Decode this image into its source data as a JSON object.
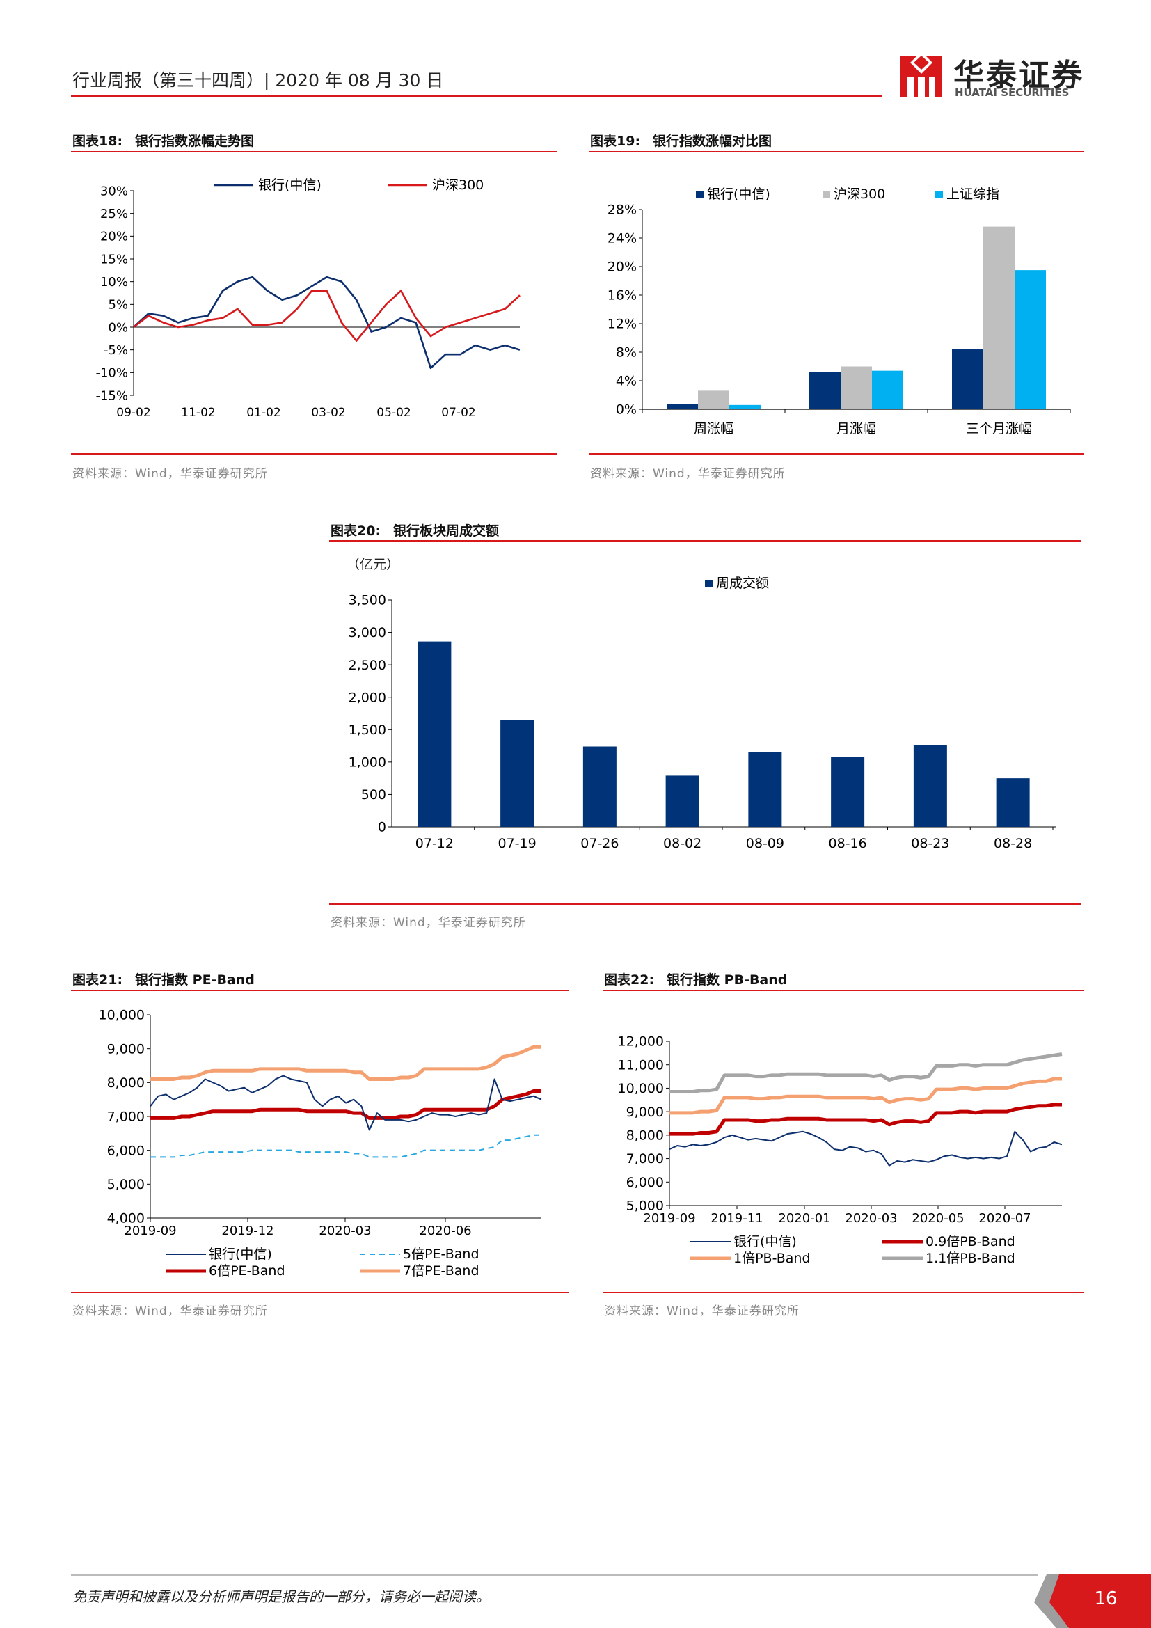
{
  "header": {
    "title": "行业周报（第三十四周）| 2020 年 08 月 30 日",
    "logo_cn": "华泰证券",
    "logo_en": "HUATAI SECURITIES",
    "brand_color": "#d7191c"
  },
  "footer": {
    "disclaimer": "免责声明和披露以及分析师声明是报告的一部分，请务必一起阅读。",
    "page": "16"
  },
  "figures": [
    {
      "num": "图表18:",
      "title": "银行指数涨幅走势图",
      "source": "资料来源：Wind，华泰证券研究所"
    },
    {
      "num": "图表19:",
      "title": "银行指数涨幅对比图",
      "source": "资料来源：Wind，华泰证券研究所"
    },
    {
      "num": "图表20:",
      "title": "银行板块周成交额",
      "source": "资料来源：Wind，华泰证券研究所",
      "unit": "（亿元）"
    },
    {
      "num": "图表21:",
      "title": "银行指数 PE-Band",
      "source": "资料来源：Wind，华泰证券研究所"
    },
    {
      "num": "图表22:",
      "title": "银行指数 PB-Band",
      "source": "资料来源：Wind，华泰证券研究所"
    }
  ],
  "chart_data": [
    {
      "type": "line",
      "ylim": [
        -15,
        30
      ],
      "y_ticks": [
        "30%",
        "25%",
        "20%",
        "15%",
        "10%",
        "5%",
        "0%",
        "-5%",
        "-10%",
        "-15%"
      ],
      "x_ticks": [
        "09-02",
        "11-02",
        "01-02",
        "03-02",
        "05-02",
        "07-02"
      ],
      "legend": "top-center",
      "x": [
        0,
        2,
        4,
        6,
        8,
        10,
        12,
        14,
        16,
        18,
        20,
        22,
        24,
        26,
        28,
        30,
        32,
        34,
        36,
        38,
        40,
        42,
        44,
        46,
        48,
        50,
        52
      ],
      "series": [
        {
          "name": "银行(中信)",
          "color": "#0d2f6e",
          "values": [
            0,
            3,
            2.5,
            1,
            2,
            2.5,
            8,
            10,
            11,
            8,
            6,
            7,
            9,
            11,
            10,
            6,
            -1,
            0,
            2,
            1,
            -9,
            -6,
            -6,
            -4,
            -5,
            -4,
            -5
          ]
        },
        {
          "name": "沪深300",
          "color": "#d7191c",
          "values": [
            0,
            2.5,
            1,
            0,
            0.5,
            1.5,
            2,
            4,
            0.5,
            0.5,
            1,
            4,
            8,
            8,
            1,
            -3,
            1,
            5,
            8,
            2,
            -2,
            0,
            1,
            2,
            3,
            4,
            7
          ]
        }
      ]
    },
    {
      "type": "bar",
      "ylim": [
        0,
        28
      ],
      "y_ticks": [
        "28%",
        "24%",
        "20%",
        "16%",
        "12%",
        "8%",
        "4%",
        "0%"
      ],
      "categories": [
        "周涨幅",
        "月涨幅",
        "三个月涨幅"
      ],
      "legend": "top",
      "series": [
        {
          "name": "银行(中信)",
          "color": "#003377",
          "values": [
            0.7,
            5.2,
            8.4
          ]
        },
        {
          "name": "沪深300",
          "color": "#bfbfbf",
          "values": [
            2.6,
            6.0,
            25.6
          ]
        },
        {
          "name": "上证综指",
          "color": "#00b0f0",
          "values": [
            0.6,
            5.4,
            19.5
          ]
        }
      ]
    },
    {
      "type": "bar",
      "ylim": [
        0,
        3500
      ],
      "y_ticks": [
        "3,500",
        "3,000",
        "2,500",
        "2,000",
        "1,500",
        "1,000",
        "500",
        "0"
      ],
      "categories": [
        "07-12",
        "07-19",
        "07-26",
        "08-02",
        "08-09",
        "08-16",
        "08-23",
        "08-28"
      ],
      "legend": "top-right",
      "series": [
        {
          "name": "周成交额",
          "color": "#003377",
          "values": [
            2860,
            1650,
            1240,
            790,
            1150,
            1080,
            1260,
            750
          ]
        }
      ]
    },
    {
      "type": "line",
      "ylim": [
        4000,
        10000
      ],
      "y_ticks": [
        "10,000",
        "9,000",
        "8,000",
        "7,000",
        "6,000",
        "5,000",
        "4,000"
      ],
      "x_ticks": [
        "2019-09",
        "2019-12",
        "2020-03",
        "2020-06"
      ],
      "legend": "bottom",
      "x": [
        0,
        1,
        2,
        3,
        4,
        5,
        6,
        7,
        8,
        9,
        10,
        11,
        12,
        13,
        14,
        15,
        16,
        17,
        18,
        19,
        20,
        21,
        22,
        23,
        24,
        25,
        26,
        27,
        28,
        29,
        30,
        31,
        32,
        33,
        34,
        35,
        36,
        37,
        38,
        39,
        40,
        41,
        42,
        43,
        44,
        45,
        46,
        47,
        48,
        49,
        50
      ],
      "series": [
        {
          "name": "银行(中信)",
          "color": "#0d2f6e",
          "style": "thin",
          "values": [
            7300,
            7600,
            7650,
            7500,
            7600,
            7700,
            7850,
            8100,
            8000,
            7900,
            7750,
            7800,
            7850,
            7700,
            7800,
            7900,
            8100,
            8200,
            8100,
            8050,
            8000,
            7500,
            7300,
            7500,
            7600,
            7400,
            7500,
            7300,
            6600,
            7100,
            6900,
            6900,
            6900,
            6850,
            6900,
            7000,
            7100,
            7050,
            7050,
            7000,
            7050,
            7100,
            7050,
            7100,
            8100,
            7500,
            7450,
            7500,
            7550,
            7600,
            7500
          ]
        },
        {
          "name": "5倍PE-Band",
          "color": "#28a8e0",
          "style": "dashed",
          "values": [
            5800,
            5800,
            5800,
            5800,
            5850,
            5850,
            5900,
            5950,
            5950,
            5950,
            5950,
            5950,
            5950,
            6000,
            6000,
            6000,
            6000,
            6000,
            6000,
            5950,
            5950,
            5950,
            5950,
            5950,
            5950,
            5950,
            5900,
            5900,
            5800,
            5800,
            5800,
            5800,
            5800,
            5850,
            5900,
            6000,
            6000,
            6000,
            6000,
            6000,
            6000,
            6000,
            6000,
            6050,
            6100,
            6300,
            6300,
            6350,
            6400,
            6450,
            6450
          ]
        },
        {
          "name": "6倍PE-Band",
          "color": "#c00000",
          "style": "thick",
          "values": [
            6950,
            6950,
            6950,
            6950,
            7000,
            7000,
            7050,
            7100,
            7150,
            7150,
            7150,
            7150,
            7150,
            7150,
            7200,
            7200,
            7200,
            7200,
            7200,
            7200,
            7150,
            7150,
            7150,
            7150,
            7150,
            7150,
            7100,
            7100,
            6950,
            6950,
            6950,
            6950,
            7000,
            7000,
            7050,
            7200,
            7200,
            7200,
            7200,
            7200,
            7200,
            7200,
            7200,
            7200,
            7300,
            7500,
            7550,
            7600,
            7650,
            7750,
            7750
          ]
        },
        {
          "name": "7倍PE-Band",
          "color": "#f4a070",
          "style": "thick",
          "values": [
            8100,
            8100,
            8100,
            8100,
            8150,
            8150,
            8200,
            8300,
            8350,
            8350,
            8350,
            8350,
            8350,
            8350,
            8400,
            8400,
            8400,
            8400,
            8400,
            8400,
            8350,
            8350,
            8350,
            8350,
            8350,
            8350,
            8300,
            8300,
            8100,
            8100,
            8100,
            8100,
            8150,
            8150,
            8200,
            8400,
            8400,
            8400,
            8400,
            8400,
            8400,
            8400,
            8400,
            8450,
            8550,
            8750,
            8800,
            8850,
            8950,
            9050,
            9050
          ]
        }
      ]
    },
    {
      "type": "line",
      "ylim": [
        5000,
        12000
      ],
      "y_ticks": [
        "12,000",
        "11,000",
        "10,000",
        "9,000",
        "8,000",
        "7,000",
        "6,000",
        "5,000"
      ],
      "x_ticks": [
        "2019-09",
        "2019-11",
        "2020-01",
        "2020-03",
        "2020-05",
        "2020-07"
      ],
      "legend": "bottom",
      "x": [
        0,
        1,
        2,
        3,
        4,
        5,
        6,
        7,
        8,
        9,
        10,
        11,
        12,
        13,
        14,
        15,
        16,
        17,
        18,
        19,
        20,
        21,
        22,
        23,
        24,
        25,
        26,
        27,
        28,
        29,
        30,
        31,
        32,
        33,
        34,
        35,
        36,
        37,
        38,
        39,
        40,
        41,
        42,
        43,
        44,
        45,
        46,
        47,
        48,
        49,
        50
      ],
      "series": [
        {
          "name": "银行(中信)",
          "color": "#0d2f6e",
          "style": "thin",
          "values": [
            7400,
            7550,
            7500,
            7600,
            7550,
            7600,
            7700,
            7900,
            8000,
            7900,
            7800,
            7850,
            7800,
            7750,
            7900,
            8050,
            8100,
            8150,
            8050,
            7900,
            7700,
            7400,
            7350,
            7500,
            7450,
            7300,
            7350,
            7200,
            6700,
            6900,
            6850,
            6950,
            6900,
            6850,
            6950,
            7100,
            7150,
            7050,
            7000,
            7050,
            7000,
            7050,
            7000,
            7100,
            8150,
            7800,
            7300,
            7450,
            7500,
            7700,
            7600
          ]
        },
        {
          "name": "0.9倍PB-Band",
          "color": "#c00000",
          "style": "thick",
          "values": [
            8050,
            8050,
            8050,
            8050,
            8100,
            8100,
            8150,
            8650,
            8650,
            8650,
            8650,
            8600,
            8600,
            8650,
            8650,
            8700,
            8700,
            8700,
            8700,
            8700,
            8650,
            8650,
            8650,
            8650,
            8650,
            8650,
            8600,
            8650,
            8450,
            8550,
            8600,
            8600,
            8550,
            8600,
            8950,
            8950,
            8950,
            9000,
            9000,
            8950,
            9000,
            9000,
            9000,
            9000,
            9100,
            9150,
            9200,
            9250,
            9250,
            9300,
            9300
          ]
        },
        {
          "name": "1倍PB-Band",
          "color": "#f4a070",
          "style": "thick",
          "values": [
            8950,
            8950,
            8950,
            8950,
            9000,
            9000,
            9050,
            9600,
            9600,
            9600,
            9600,
            9550,
            9550,
            9600,
            9600,
            9650,
            9650,
            9650,
            9650,
            9650,
            9600,
            9600,
            9600,
            9600,
            9600,
            9600,
            9550,
            9600,
            9400,
            9500,
            9550,
            9550,
            9500,
            9550,
            9950,
            9950,
            9950,
            10000,
            10000,
            9950,
            10000,
            10000,
            10000,
            10000,
            10100,
            10200,
            10250,
            10300,
            10300,
            10400,
            10400
          ]
        },
        {
          "name": "1.1倍PB-Band",
          "color": "#a6a6a6",
          "style": "thick",
          "values": [
            9850,
            9850,
            9850,
            9850,
            9900,
            9900,
            9950,
            10550,
            10550,
            10550,
            10550,
            10500,
            10500,
            10550,
            10550,
            10600,
            10600,
            10600,
            10600,
            10600,
            10550,
            10550,
            10550,
            10550,
            10550,
            10550,
            10500,
            10550,
            10350,
            10450,
            10500,
            10500,
            10450,
            10500,
            10950,
            10950,
            10950,
            11000,
            11000,
            10950,
            11000,
            11000,
            11000,
            11000,
            11100,
            11200,
            11250,
            11300,
            11350,
            11400,
            11450
          ]
        }
      ]
    }
  ]
}
